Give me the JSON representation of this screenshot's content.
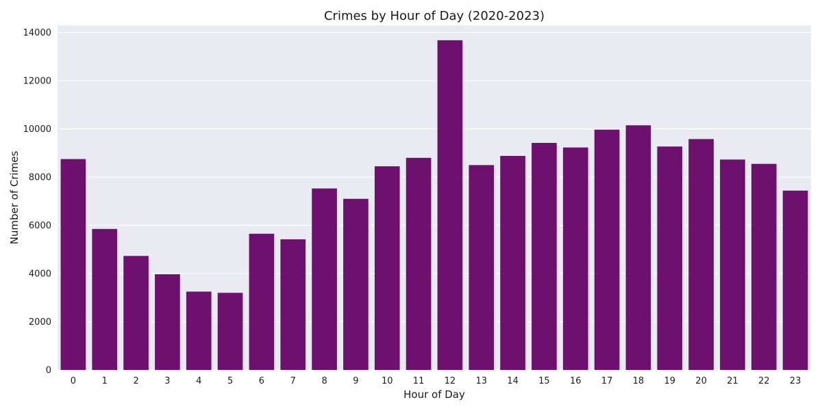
{
  "chart_data": {
    "type": "bar",
    "title": "Crimes by Hour of Day (2020-2023)",
    "xlabel": "Hour of Day",
    "ylabel": "Number of Crimes",
    "categories": [
      "0",
      "1",
      "2",
      "3",
      "4",
      "5",
      "6",
      "7",
      "8",
      "9",
      "10",
      "11",
      "12",
      "13",
      "14",
      "15",
      "16",
      "17",
      "18",
      "19",
      "20",
      "21",
      "22",
      "23"
    ],
    "values": [
      8750,
      5850,
      4730,
      3970,
      3250,
      3200,
      5650,
      5420,
      7530,
      7100,
      8450,
      8800,
      13680,
      8500,
      8880,
      9420,
      9230,
      9970,
      10150,
      9270,
      9580,
      8730,
      8550,
      7440
    ],
    "ylim": [
      0,
      14300
    ],
    "yticks": [
      0,
      2000,
      4000,
      6000,
      8000,
      10000,
      12000,
      14000
    ],
    "grid": true,
    "colors": {
      "bar": "#6e106e",
      "plot_bg": "#eaeaf2",
      "grid": "#ffffff"
    }
  }
}
